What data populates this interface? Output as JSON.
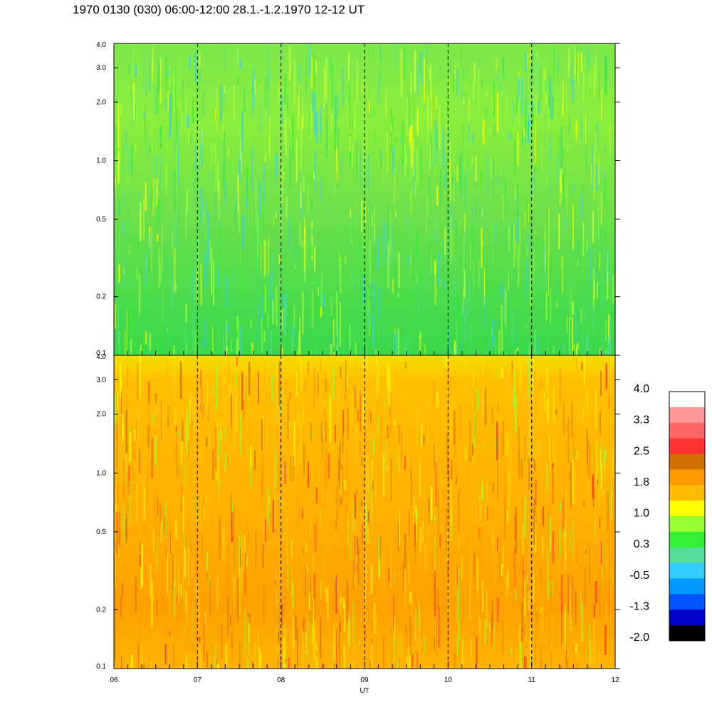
{
  "title": "1970 0130 (030) 06:00-12:00 28.1.-1.2.1970  12-12 UT",
  "chart_data": [
    {
      "type": "heatmap",
      "panel": "top",
      "x_tick_labels": [],
      "x_range_ut_hours": [
        6,
        12
      ],
      "y_scale": "log",
      "y_range": [
        0.1,
        4.0
      ],
      "y_tick_values": [
        0.1,
        0.2,
        0.5,
        1.0,
        2.0,
        3.0,
        4.0
      ],
      "y_tick_labels": [
        "0.1",
        "0.2",
        "0.5",
        "1.0",
        "2.0",
        "3.0",
        "4.0"
      ],
      "dominant_color_level_range": [
        -0.5,
        1.0
      ],
      "hour_markers_ut": [
        7,
        8,
        9,
        10,
        11
      ]
    },
    {
      "type": "heatmap",
      "panel": "bottom",
      "xlabel": "UT",
      "x_range_ut_hours": [
        6,
        12
      ],
      "x_tick_labels": [
        "06",
        "07",
        "08",
        "09",
        "10",
        "11",
        "12"
      ],
      "y_scale": "log",
      "y_range": [
        0.1,
        4.0
      ],
      "y_tick_values": [
        0.1,
        0.2,
        0.5,
        1.0,
        2.0,
        3.0,
        4.0
      ],
      "y_tick_labels": [
        "0.1",
        "0.2",
        "0.5",
        "1.0",
        "2.0",
        "3.0",
        "4.0"
      ],
      "dominant_color_level_range": [
        1.0,
        2.5
      ],
      "hour_markers_ut": [
        7,
        8,
        9,
        10,
        11
      ]
    }
  ],
  "colorbar": {
    "labels": [
      "4.0",
      "3.3",
      "2.5",
      "1.8",
      "1.0",
      "0.3",
      "-0.5",
      "-1.3",
      "-2.0"
    ],
    "colors_top_to_bottom": [
      "#ffffff",
      "#ff9999",
      "#ff6666",
      "#ff3333",
      "#d07000",
      "#ff9900",
      "#ffbb00",
      "#ffff00",
      "#99ff33",
      "#33ee33",
      "#55dd99",
      "#33ccff",
      "#0099ff",
      "#0055ff",
      "#0000cc",
      "#000000"
    ]
  }
}
